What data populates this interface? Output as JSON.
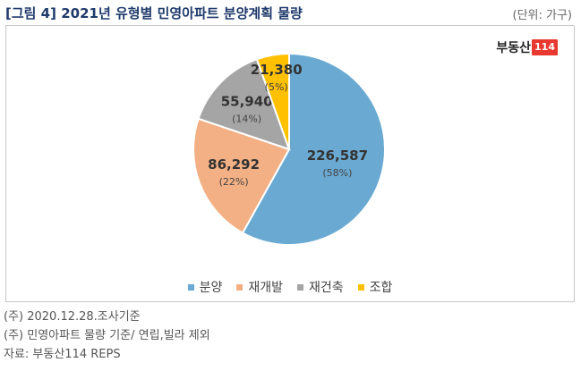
{
  "header": {
    "title": "[그림 4] 2021년 유형별 민영아파트 분양계획 물량",
    "unit": "(단위: 가구)"
  },
  "logo": {
    "text": "부동산",
    "badge": "114"
  },
  "chart_data": {
    "type": "pie",
    "title": "",
    "slices": [
      {
        "name": "분양",
        "value": 226587,
        "value_label": "226,587",
        "pct_label": "(58%)",
        "color": "#6aa9d2"
      },
      {
        "name": "재개발",
        "value": 86292,
        "value_label": "86,292",
        "pct_label": "(22%)",
        "color": "#f3b084"
      },
      {
        "name": "재건축",
        "value": 55940,
        "value_label": "55,940",
        "pct_label": "(14%)",
        "color": "#a5a5a5"
      },
      {
        "name": "조합",
        "value": 21380,
        "value_label": "21,380",
        "pct_label": "(5%)",
        "color": "#ffc000"
      }
    ],
    "legend_position": "bottom"
  },
  "notes": [
    "(주) 2020.12.28.조사기준",
    "(주) 민영아파트 물량 기준/ 연립,빌라 제외",
    "자료: 부동산114 REPS"
  ]
}
